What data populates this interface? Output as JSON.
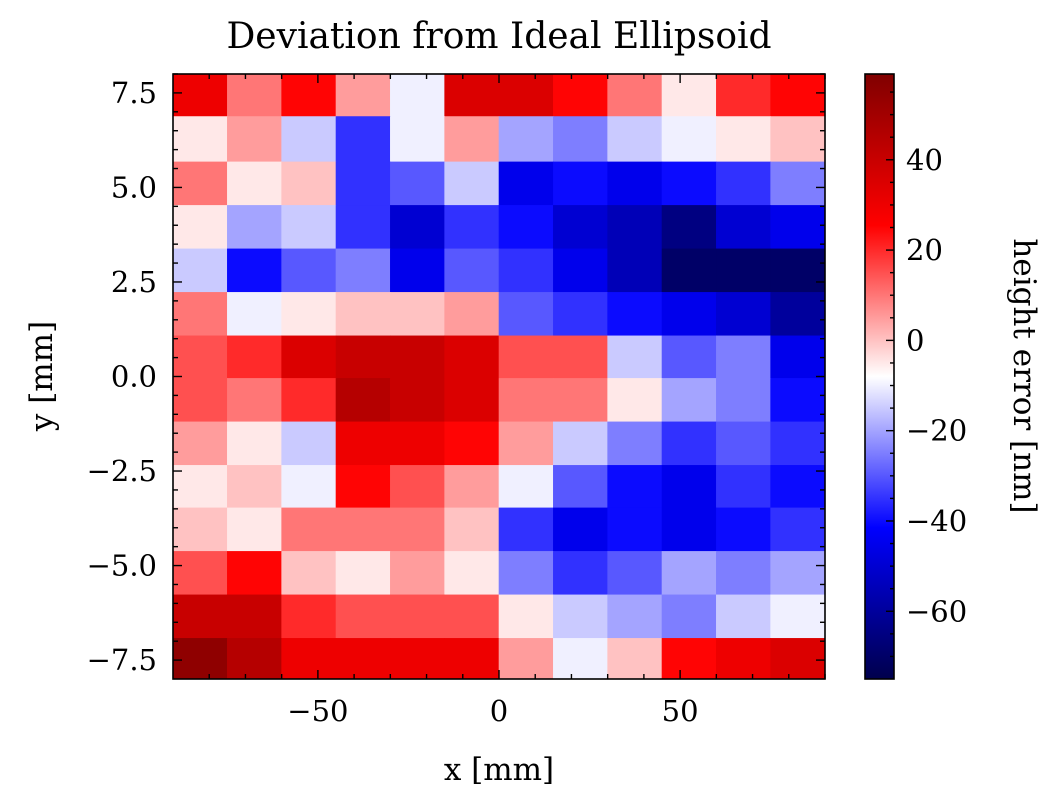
{
  "chart_data": {
    "type": "heatmap",
    "title": "Deviation from Ideal Ellipsoid",
    "xlabel": "x [mm]",
    "ylabel": "y [mm]",
    "colorbar_label": "height error [nm]",
    "colormap": "seismic",
    "colormap_stops": [
      "#00004c",
      "#0000ff",
      "#ffffff",
      "#ff0000",
      "#800000"
    ],
    "xlim": [
      -90,
      90
    ],
    "ylim": [
      -8,
      8
    ],
    "clim": [
      -75,
      59
    ],
    "xticks": [
      {
        "v": -50,
        "label": "−50"
      },
      {
        "v": 0,
        "label": "0"
      },
      {
        "v": 50,
        "label": "50"
      }
    ],
    "yticks": [
      {
        "v": -7.5,
        "label": "−7.5"
      },
      {
        "v": -5.0,
        "label": "−5.0"
      },
      {
        "v": -2.5,
        "label": "−2.5"
      },
      {
        "v": 0.0,
        "label": "0.0"
      },
      {
        "v": 2.5,
        "label": "2.5"
      },
      {
        "v": 5.0,
        "label": "5.0"
      },
      {
        "v": 7.5,
        "label": "7.5"
      }
    ],
    "cbar_ticks": [
      {
        "v": -60,
        "label": "−60"
      },
      {
        "v": -40,
        "label": "−40"
      },
      {
        "v": -20,
        "label": "−20"
      },
      {
        "v": 0,
        "label": "0"
      },
      {
        "v": 20,
        "label": "20"
      },
      {
        "v": 40,
        "label": "40"
      }
    ],
    "x_centers": [
      -82.5,
      -67.5,
      -52.5,
      -37.5,
      -22.5,
      -7.5,
      7.5,
      22.5,
      37.5,
      52.5,
      67.5,
      82.5
    ],
    "y_centers": [
      7.5,
      6.25,
      5.1,
      3.95,
      2.8,
      1.65,
      0.5,
      -0.6,
      -1.8,
      -2.9,
      -4.05,
      -5.2,
      -6.35,
      -7.5
    ],
    "rows": [
      [
        30,
        10,
        25,
        5,
        -10,
        35,
        35,
        25,
        10,
        -5,
        20,
        25
      ],
      [
        -5,
        5,
        -15,
        -35,
        -10,
        5,
        -20,
        -25,
        -15,
        -10,
        -5,
        0
      ],
      [
        10,
        -5,
        0,
        -35,
        -30,
        -15,
        -45,
        -40,
        -45,
        -40,
        -35,
        -25
      ],
      [
        -5,
        -20,
        -15,
        -35,
        -50,
        -35,
        -40,
        -50,
        -55,
        -65,
        -50,
        -45
      ],
      [
        -15,
        -40,
        -30,
        -25,
        -45,
        -30,
        -35,
        -45,
        -55,
        -70,
        -70,
        -70
      ],
      [
        10,
        -10,
        -5,
        0,
        0,
        5,
        -30,
        -35,
        -40,
        -45,
        -50,
        -60
      ],
      [
        15,
        20,
        35,
        40,
        40,
        35,
        15,
        15,
        -15,
        -30,
        -25,
        -45
      ],
      [
        15,
        10,
        20,
        45,
        40,
        35,
        10,
        10,
        -5,
        -20,
        -25,
        -40
      ],
      [
        5,
        -5,
        -15,
        30,
        30,
        25,
        5,
        -15,
        -25,
        -35,
        -30,
        -35
      ],
      [
        -5,
        0,
        -10,
        25,
        15,
        5,
        -10,
        -30,
        -40,
        -45,
        -35,
        -40
      ],
      [
        0,
        -5,
        10,
        10,
        10,
        0,
        -35,
        -45,
        -40,
        -45,
        -40,
        -35
      ],
      [
        15,
        25,
        0,
        -5,
        5,
        -5,
        -25,
        -35,
        -30,
        -20,
        -25,
        -20
      ],
      [
        40,
        40,
        20,
        15,
        15,
        15,
        -5,
        -15,
        -20,
        -25,
        -15,
        -10
      ],
      [
        55,
        45,
        30,
        30,
        30,
        30,
        5,
        -10,
        0,
        25,
        30,
        35
      ]
    ]
  }
}
